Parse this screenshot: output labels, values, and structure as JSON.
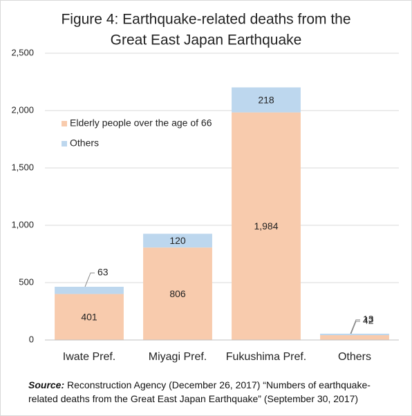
{
  "chart_data": {
    "type": "stacked-bar",
    "title": [
      "Figure 4: Earthquake-related deaths from the",
      "Great East Japan Earthquake"
    ],
    "categories": [
      "Iwate Pref.",
      "Miyagi Pref.",
      "Fukushima Pref.",
      "Others"
    ],
    "series": [
      {
        "name": "Elderly people over the age of 66",
        "color": "#f8cbad",
        "values": [
          401,
          806,
          1984,
          42
        ],
        "value_labels": [
          "401",
          "806",
          "1,984",
          "42"
        ]
      },
      {
        "name": "Others",
        "color": "#bdd7ee",
        "values": [
          63,
          120,
          218,
          13
        ]
      }
    ],
    "ylim": [
      0,
      2500
    ],
    "yticks": [
      0,
      500,
      {
        "value": 1000,
        "label": "1,000"
      },
      {
        "value": 1500,
        "label": "1,500"
      },
      {
        "value": 2000,
        "label": "2,000"
      },
      {
        "value": 2500,
        "label": "2,500"
      }
    ],
    "grid": true,
    "legend": "upper-left"
  },
  "source_label": "Source:",
  "source": "Reconstruction Agency (December 26, 2017) “Numbers of earthquake-related deaths from the Great East Japan Earthquake” (September 30, 2017)"
}
